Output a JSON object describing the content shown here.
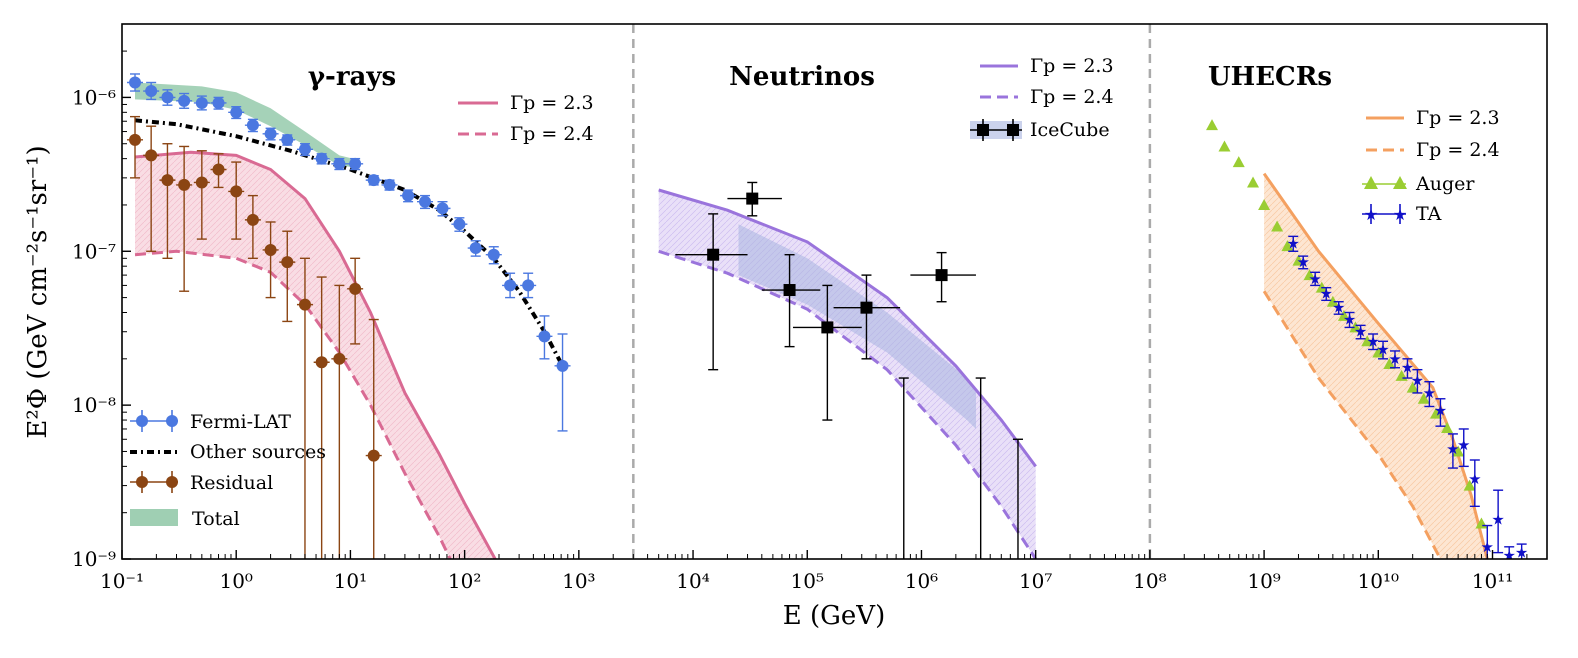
{
  "chart_data": {
    "type": "scatter",
    "xlabel": "E (GeV)",
    "ylabel": "E²Φ (GeV cm⁻²s⁻¹sr⁻¹)",
    "x_scale": "log",
    "y_scale": "log",
    "xlim": [
      0.1,
      300000000000.0
    ],
    "ylim": [
      1e-09,
      3e-06
    ],
    "x_tick_labels": [
      "10⁻¹",
      "10⁰",
      "10¹",
      "10²",
      "10³",
      "10⁴",
      "10⁵",
      "10⁶",
      "10⁷",
      "10⁸",
      "10⁹",
      "10¹⁰",
      "10¹¹"
    ],
    "y_tick_labels": [
      "10⁻⁹",
      "10⁻⁸",
      "10⁻⁷",
      "10⁻⁶"
    ],
    "panel_dividers": [
      3000,
      100000000.0
    ],
    "colors": {
      "fermi": "#4b78e0",
      "residual": "#8b4513",
      "total": "#7fbf9a",
      "gamma_model": "#d96a93",
      "nu_model": "#9a74dc",
      "icecube_band": "#a8b4e0",
      "icecube": "#000000",
      "uhecr_model": "#f4a060",
      "auger": "#9acd32",
      "ta": "#1010c8"
    },
    "panels": {
      "gamma": {
        "title": "γ-rays",
        "legend": {
          "model_23": "Γp = 2.3",
          "model_24": "Γp = 2.4",
          "fermi": "Fermi-LAT",
          "other": "Other sources",
          "residual": "Residual",
          "total": "Total"
        },
        "fermi_lat": [
          [
            0.13,
            1.25e-06,
            1.1e-06,
            1.42e-06
          ],
          [
            0.18,
            1.1e-06,
            9.7e-07,
            1.25e-06
          ],
          [
            0.25,
            1e-06,
            8.9e-07,
            1.12e-06
          ],
          [
            0.35,
            9.5e-07,
            8.5e-07,
            1.06e-06
          ],
          [
            0.5,
            9.2e-07,
            8.3e-07,
            1.02e-06
          ],
          [
            0.7,
            9.2e-07,
            8.4e-07,
            1e-06
          ],
          [
            1.0,
            8e-07,
            7.3e-07,
            8.7e-07
          ],
          [
            1.4,
            6.6e-07,
            6e-07,
            7.2e-07
          ],
          [
            2.0,
            5.8e-07,
            5.3e-07,
            6.3e-07
          ],
          [
            2.8,
            5.3e-07,
            4.9e-07,
            5.7e-07
          ],
          [
            4.0,
            4.6e-07,
            4.2e-07,
            5e-07
          ],
          [
            5.6,
            4e-07,
            3.7e-07,
            4.3e-07
          ],
          [
            8.0,
            3.7e-07,
            3.4e-07,
            4e-07
          ],
          [
            11.0,
            3.7e-07,
            3.4e-07,
            4e-07
          ],
          [
            16.0,
            2.9e-07,
            2.7e-07,
            3.1e-07
          ],
          [
            22.0,
            2.7e-07,
            2.5e-07,
            2.9e-07
          ],
          [
            32.0,
            2.3e-07,
            2.1e-07,
            2.5e-07
          ],
          [
            45.0,
            2.1e-07,
            1.9e-07,
            2.3e-07
          ],
          [
            64.0,
            1.9e-07,
            1.7e-07,
            2.1e-07
          ],
          [
            90.0,
            1.5e-07,
            1.35e-07,
            1.65e-07
          ],
          [
            125.0,
            1.05e-07,
            9.3e-08,
            1.17e-07
          ],
          [
            180.0,
            9.5e-08,
            8.3e-08,
            1.07e-07
          ],
          [
            250.0,
            6e-08,
            5e-08,
            7.2e-08
          ],
          [
            360.0,
            6e-08,
            5e-08,
            7.2e-08
          ],
          [
            500.0,
            2.8e-08,
            2e-08,
            3.8e-08
          ],
          [
            720.0,
            1.8e-08,
            6.8e-09,
            2.9e-08
          ]
        ],
        "residual": [
          [
            0.13,
            5.3e-07,
            3e-07,
            7.5e-07
          ],
          [
            0.18,
            4.2e-07,
            1e-07,
            6.5e-07
          ],
          [
            0.25,
            2.9e-07,
            9e-08,
            5e-07
          ],
          [
            0.35,
            2.7e-07,
            5.5e-08,
            4.8e-07
          ],
          [
            0.5,
            2.8e-07,
            1.2e-07,
            4.5e-07
          ],
          [
            0.7,
            3.4e-07,
            2.6e-07,
            4.3e-07
          ],
          [
            1.0,
            2.45e-07,
            1.2e-07,
            3.8e-07
          ],
          [
            1.4,
            1.6e-07,
            9e-08,
            2.3e-07
          ],
          [
            2.0,
            1.02e-07,
            5e-08,
            1.55e-07
          ],
          [
            2.8,
            8.5e-08,
            3.5e-08,
            1.35e-07
          ],
          [
            4.0,
            4.5e-08,
            1e-10,
            9e-08
          ],
          [
            5.6,
            1.9e-08,
            1e-10,
            6.8e-08
          ],
          [
            8.0,
            2e-08,
            1e-10,
            6e-08
          ],
          [
            11.0,
            5.7e-08,
            2.5e-08,
            9e-08
          ],
          [
            16.0,
            4.7e-09,
            1e-10,
            3.6e-08
          ]
        ],
        "other_sources": [
          [
            0.13,
            7.1e-07
          ],
          [
            0.3,
            6.7e-07
          ],
          [
            1,
            5.6e-07
          ],
          [
            3,
            4.5e-07
          ],
          [
            10,
            3.4e-07
          ],
          [
            30,
            2.5e-07
          ],
          [
            60,
            1.85e-07
          ],
          [
            100,
            1.35e-07
          ],
          [
            180,
            9e-08
          ],
          [
            300,
            5.5e-08
          ],
          [
            500,
            3e-08
          ],
          [
            720,
            1.8e-08
          ]
        ],
        "total_upper": [
          [
            0.13,
            1.25e-06
          ],
          [
            0.5,
            1.18e-06
          ],
          [
            1,
            1.08e-06
          ],
          [
            2,
            8.5e-07
          ],
          [
            4,
            6e-07
          ],
          [
            8,
            4.2e-07
          ],
          [
            12,
            3.9e-07
          ]
        ],
        "total_lower": [
          [
            0.13,
            9.7e-07
          ],
          [
            0.5,
            9.3e-07
          ],
          [
            1,
            8.3e-07
          ],
          [
            2,
            6.5e-07
          ],
          [
            4,
            4.9e-07
          ],
          [
            8,
            3.6e-07
          ],
          [
            12,
            3.5e-07
          ]
        ],
        "model_23": [
          [
            0.13,
            4.1e-07
          ],
          [
            0.4,
            4.4e-07
          ],
          [
            1,
            4.2e-07
          ],
          [
            2,
            3.4e-07
          ],
          [
            4,
            2.2e-07
          ],
          [
            8,
            1e-07
          ],
          [
            15,
            4e-08
          ],
          [
            30,
            1.2e-08
          ],
          [
            60,
            4.8e-09
          ],
          [
            100,
            2.3e-09
          ],
          [
            200,
            9e-10
          ]
        ],
        "model_24": [
          [
            0.13,
            9.5e-08
          ],
          [
            0.3,
            1e-07
          ],
          [
            1,
            9e-08
          ],
          [
            2,
            7.3e-08
          ],
          [
            4,
            4.5e-08
          ],
          [
            8,
            2.2e-08
          ],
          [
            15,
            1e-08
          ],
          [
            30,
            3.6e-09
          ],
          [
            60,
            1.4e-09
          ],
          [
            80,
            9e-10
          ]
        ]
      },
      "neutrinos": {
        "title": "Neutrinos",
        "legend": {
          "model_23": "Γp = 2.3",
          "model_24": "Γp = 2.4",
          "icecube": "IceCube"
        },
        "icecube": [
          [
            15000,
            9.5e-08,
            7000,
            30000,
            1.7e-08,
            1.75e-07
          ],
          [
            33000,
            2.2e-07,
            20000,
            60000,
            1.7e-07,
            2.8e-07
          ],
          [
            70000,
            5.6e-08,
            40000,
            130000,
            2.4e-08,
            9.5e-08
          ],
          [
            150000,
            3.2e-08,
            75000,
            300000,
            8e-09,
            6e-08
          ],
          [
            330000,
            4.3e-08,
            170000,
            650000,
            2e-08,
            7e-08
          ],
          [
            1500000,
            7e-08,
            800000,
            3000000,
            4.7e-08,
            9.8e-08
          ]
        ],
        "icecube_upper_limits": [
          [
            700000,
            1.5e-08
          ],
          [
            3300000,
            1.5e-08
          ],
          [
            7000000,
            6e-09
          ]
        ],
        "icecube_band_upper": [
          [
            25000,
            1.5e-07
          ],
          [
            100000,
            9e-08
          ],
          [
            500000,
            4e-08
          ],
          [
            2500000,
            1.5e-08
          ],
          [
            3000000,
            1.2e-08
          ]
        ],
        "icecube_band_lower": [
          [
            25000,
            7e-08
          ],
          [
            100000,
            4.5e-08
          ],
          [
            500000,
            2.2e-08
          ],
          [
            2500000,
            8e-09
          ],
          [
            3000000,
            7e-09
          ]
        ],
        "model_23": [
          [
            5000,
            2.5e-07
          ],
          [
            20000,
            1.85e-07
          ],
          [
            100000,
            1.15e-07
          ],
          [
            500000,
            5e-08
          ],
          [
            2000000,
            1.8e-08
          ],
          [
            5000000,
            8e-09
          ],
          [
            10000000,
            4e-09
          ]
        ],
        "model_24": [
          [
            5000,
            1e-07
          ],
          [
            20000,
            7.2e-08
          ],
          [
            100000,
            4.2e-08
          ],
          [
            500000,
            1.7e-08
          ],
          [
            2000000,
            5.5e-09
          ],
          [
            5000000,
            2.2e-09
          ],
          [
            10000000,
            1e-09
          ]
        ]
      },
      "uhecr": {
        "title": "UHECRs",
        "legend": {
          "model_23": "Γp = 2.3",
          "model_24": "Γp = 2.4",
          "auger": "Auger",
          "ta": "TA"
        },
        "auger": [
          [
            350000000.0,
            6.6e-07
          ],
          [
            450000000.0,
            4.8e-07
          ],
          [
            600000000.0,
            3.8e-07
          ],
          [
            800000000.0,
            2.8e-07
          ],
          [
            1000000000.0,
            2e-07
          ],
          [
            1300000000.0,
            1.45e-07
          ],
          [
            1600000000.0,
            1.08e-07
          ],
          [
            2000000000.0,
            8.7e-08
          ],
          [
            2500000000.0,
            7e-08
          ],
          [
            3200000000.0,
            5.8e-08
          ],
          [
            4000000000.0,
            4.7e-08
          ],
          [
            5000000000.0,
            3.8e-08
          ],
          [
            6300000000.0,
            3.2e-08
          ],
          [
            8000000000.0,
            2.6e-08
          ],
          [
            10000000000.0,
            2.2e-08
          ],
          [
            12500000000.0,
            1.85e-08
          ],
          [
            16000000000.0,
            1.55e-08
          ],
          [
            20000000000.0,
            1.3e-08
          ],
          [
            25000000000.0,
            1.1e-08
          ],
          [
            32000000000.0,
            8.8e-09
          ],
          [
            40000000000.0,
            7.1e-09
          ],
          [
            50000000000.0,
            5e-09
          ],
          [
            63000000000.0,
            3e-09
          ],
          [
            80000000000.0,
            1.7e-09
          ]
        ],
        "ta": [
          [
            1800000000.0,
            1.12e-07,
            1e-07,
            1.25e-07
          ],
          [
            2200000000.0,
            8.5e-08,
            7.7e-08,
            9.3e-08
          ],
          [
            2800000000.0,
            6.6e-08,
            6e-08,
            7.3e-08
          ],
          [
            3500000000.0,
            5.3e-08,
            4.8e-08,
            5.8e-08
          ],
          [
            4500000000.0,
            4.3e-08,
            3.9e-08,
            4.7e-08
          ],
          [
            5600000000.0,
            3.6e-08,
            3.2e-08,
            4e-08
          ],
          [
            7000000000.0,
            3e-08,
            2.7e-08,
            3.3e-08
          ],
          [
            9000000000.0,
            2.6e-08,
            2.3e-08,
            2.9e-08
          ],
          [
            11000000000.0,
            2.3e-08,
            2e-08,
            2.6e-08
          ],
          [
            14000000000.0,
            2e-08,
            1.75e-08,
            2.25e-08
          ],
          [
            18000000000.0,
            1.75e-08,
            1.5e-08,
            2e-08
          ],
          [
            22000000000.0,
            1.45e-08,
            1.2e-08,
            1.7e-08
          ],
          [
            28000000000.0,
            1.2e-08,
            9.8e-09,
            1.42e-08
          ],
          [
            35000000000.0,
            9.2e-09,
            7.3e-09,
            1.1e-08
          ],
          [
            45000000000.0,
            5.2e-09,
            3.9e-09,
            6.5e-09
          ],
          [
            56000000000.0,
            5.5e-09,
            4e-09,
            7e-09
          ],
          [
            70000000000.0,
            3.3e-09,
            2.2e-09,
            4.4e-09
          ],
          [
            90000000000.0,
            1.2e-09,
            7.5e-10,
            1.65e-09
          ],
          [
            112000000000.0,
            1.8e-09,
            1.1e-09,
            2.8e-09
          ],
          [
            140000000000.0,
            1.05e-09,
            9e-10,
            1.2e-09
          ],
          [
            180000000000.0,
            1.1e-09,
            9.5e-10,
            1.25e-09
          ]
        ],
        "model_23": [
          [
            1000000000.0,
            3.2e-07
          ],
          [
            3000000000.0,
            1e-07
          ],
          [
            10000000000.0,
            3.4e-08
          ],
          [
            30000000000.0,
            1.3e-08
          ],
          [
            45000000000.0,
            6e-09
          ],
          [
            65000000000.0,
            2.6e-09
          ],
          [
            90000000000.0,
            1e-09
          ]
        ],
        "model_24": [
          [
            1000000000.0,
            5.5e-08
          ],
          [
            3000000000.0,
            1.5e-08
          ],
          [
            10000000000.0,
            4.8e-09
          ],
          [
            20000000000.0,
            2.2e-09
          ],
          [
            35000000000.0,
            1e-09
          ]
        ]
      }
    }
  }
}
